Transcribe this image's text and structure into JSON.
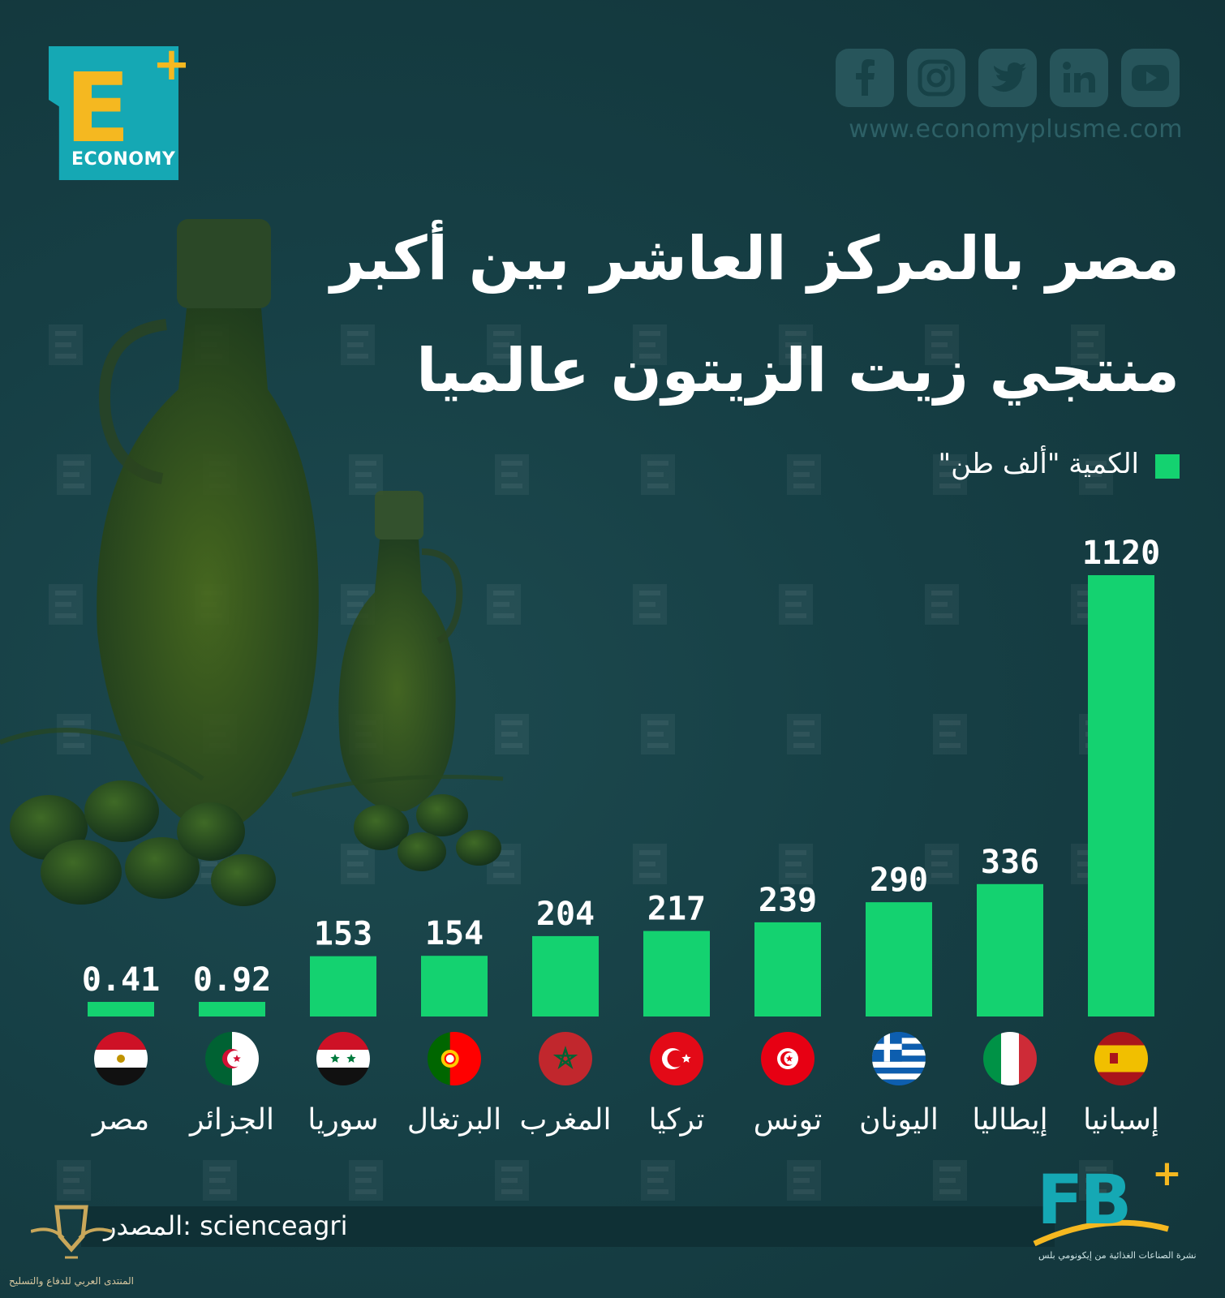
{
  "brand": {
    "logo_letter": "E",
    "logo_plus": "+",
    "logo_word": "ECONOMY",
    "website": "www.economyplusme.com",
    "social_icons": [
      "facebook-icon",
      "instagram-icon",
      "twitter-icon",
      "linkedin-icon",
      "youtube-icon"
    ]
  },
  "title": {
    "line1": "مصر بالمركز العاشر بين أكبر",
    "line2": "منتجي زيت الزيتون عالميا"
  },
  "legend": {
    "label": "الكمية \"ألف طن\"",
    "color": "#14d270"
  },
  "chart_data": {
    "type": "bar",
    "categories": [
      "مصر",
      "الجزائر",
      "سوريا",
      "البرتغال",
      "المغرب",
      "تركيا",
      "تونس",
      "اليونان",
      "إيطاليا",
      "إسبانيا"
    ],
    "value_labels": [
      "0.41",
      "0.92",
      "153",
      "154",
      "204",
      "217",
      "239",
      "290",
      "336",
      "1120"
    ],
    "series": [
      {
        "name": "الكمية \"ألف طن\"",
        "values": [
          0.41,
          0.92,
          153,
          154,
          204,
          217,
          239,
          290,
          336,
          1120
        ]
      }
    ],
    "flags": [
      "egypt-flag",
      "algeria-flag",
      "syria-flag",
      "portugal-flag",
      "morocco-flag",
      "turkey-flag",
      "tunisia-flag",
      "greece-flag",
      "italy-flag",
      "spain-flag"
    ],
    "bar_color": "#14d270",
    "grid": false
  },
  "source": {
    "text": "المصدر: scienceagri"
  },
  "footer_brand": {
    "letters": "FB",
    "plus": "+",
    "tagline": "نشرة الصناعات الغذائية من إيكونومي بلس"
  },
  "forum_watermark": {
    "text": "المنتدى العربي للدفاع والتسليح"
  }
}
